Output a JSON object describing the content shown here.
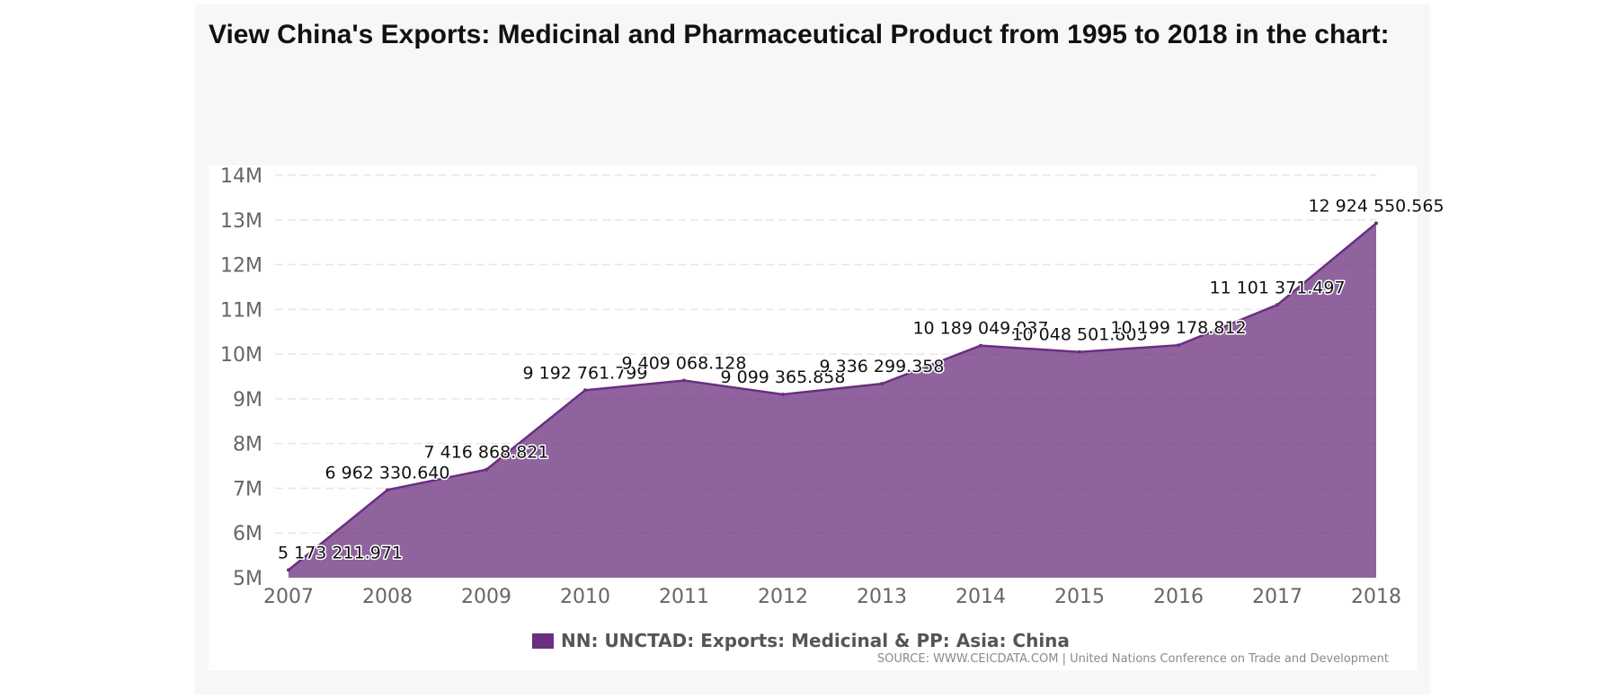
{
  "page": {
    "heading": "View China's Exports: Medicinal and Pharmaceutical Product from 1995 to 2018 in the chart:"
  },
  "chart_data": {
    "type": "area",
    "title": "",
    "xlabel": "",
    "ylabel": "",
    "x": [
      "2007",
      "2008",
      "2009",
      "2010",
      "2011",
      "2012",
      "2013",
      "2014",
      "2015",
      "2016",
      "2017",
      "2018"
    ],
    "series": [
      {
        "name": "NN: UNCTAD: Exports: Medicinal & PP: Asia: China",
        "color": "#6b2f7f",
        "values": [
          5173211.971,
          6962330.64,
          7416868.821,
          9192761.799,
          9409068.128,
          9099365.858,
          9336299.358,
          10189049.037,
          10048501.805,
          10199178.812,
          11101371.497,
          12924550.565
        ],
        "data_labels": [
          "5 173 211.971",
          "6 962 330.640",
          "7 416 868.821",
          "9 192 761.799",
          "9 409 068.128",
          "9 099 365.858",
          "9 336 299.358",
          "10 189 049.037",
          "10 048 501.805",
          "10 199 178.812",
          "11 101 371.497",
          "12 924 550.565"
        ]
      }
    ],
    "ylim": [
      5000000,
      14000000
    ],
    "y_ticks": [
      5000000,
      6000000,
      7000000,
      8000000,
      9000000,
      10000000,
      11000000,
      12000000,
      13000000,
      14000000
    ],
    "y_tick_labels": [
      "5M",
      "6M",
      "7M",
      "8M",
      "9M",
      "10M",
      "11M",
      "12M",
      "13M",
      "14M"
    ],
    "grid": true,
    "legend": "bottom-center",
    "source": "SOURCE: WWW.CEICDATA.COM | United Nations Conference on Trade and Development",
    "colors": {
      "area_fill": "#6b2f7f",
      "gridline": "#e6e6e6",
      "tick_text": "#666666"
    }
  }
}
